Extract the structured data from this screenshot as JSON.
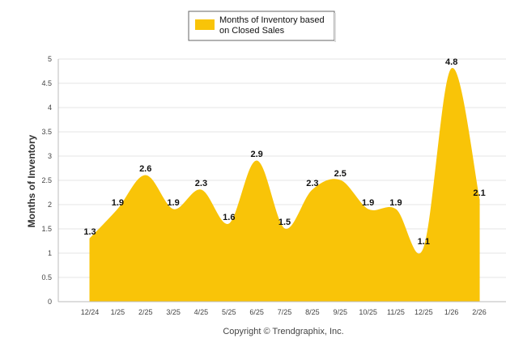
{
  "chart_data": {
    "type": "area",
    "categories": [
      "12/24",
      "1/25",
      "2/25",
      "3/25",
      "4/25",
      "5/25",
      "6/25",
      "7/25",
      "8/25",
      "9/25",
      "10/25",
      "11/25",
      "12/25",
      "1/26",
      "2/26"
    ],
    "series": [
      {
        "name": "Months of Inventory based on Closed Sales",
        "values": [
          1.3,
          1.9,
          2.6,
          1.9,
          2.3,
          1.6,
          2.9,
          1.5,
          2.3,
          2.5,
          1.9,
          1.9,
          1.1,
          4.8,
          2.1
        ],
        "data_labels": [
          "1.3",
          "1.9",
          "2.6",
          "1.9",
          "2.3",
          "1.6",
          "2.9",
          "1.5",
          "2.3",
          "2.5",
          "1.9",
          "1.9",
          "1.1",
          "4.8",
          "2.1"
        ],
        "color": "#F9C408"
      }
    ],
    "legend_lines": [
      "Months of Inventory based",
      "on Closed Sales"
    ],
    "legend_placement": "top-center",
    "ylabel": "Months of Inventory",
    "xlabel": "",
    "ylim": [
      0,
      5
    ],
    "yticks": [
      "0",
      "0.5",
      "1",
      "1.5",
      "2",
      "2.5",
      "3",
      "3.5",
      "4",
      "4.5",
      "5"
    ],
    "ytick_values": [
      0,
      0.5,
      1,
      1.5,
      2,
      2.5,
      3,
      3.5,
      4,
      4.5,
      5
    ],
    "grid": true,
    "gridline_color": "#e4e4e4",
    "footer": "Copyright © Trendgraphix, Inc."
  }
}
